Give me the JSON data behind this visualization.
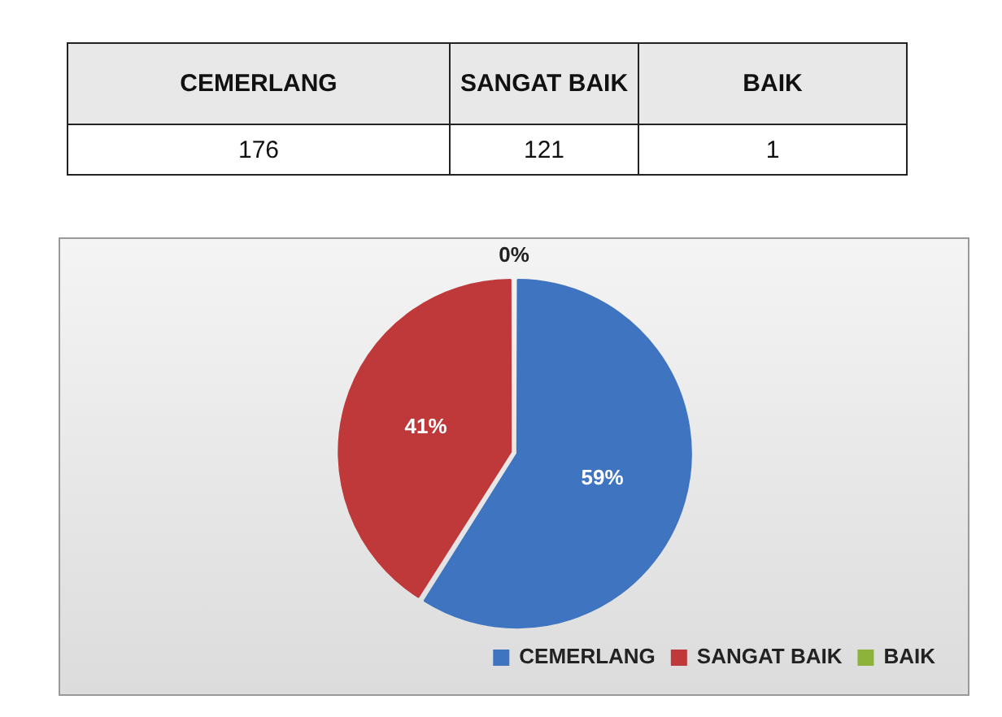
{
  "chart_data": {
    "type": "pie",
    "categories": [
      "CEMERLANG",
      "SANGAT BAIK",
      "BAIK"
    ],
    "values": [
      59,
      41,
      0
    ],
    "colors": [
      "#3f74c0",
      "#c0393a",
      "#8db33a"
    ],
    "value_labels": [
      "59%",
      "41%",
      "0%"
    ],
    "annotations": [
      "176",
      "121",
      "1"
    ],
    "legend": "bottom"
  }
}
